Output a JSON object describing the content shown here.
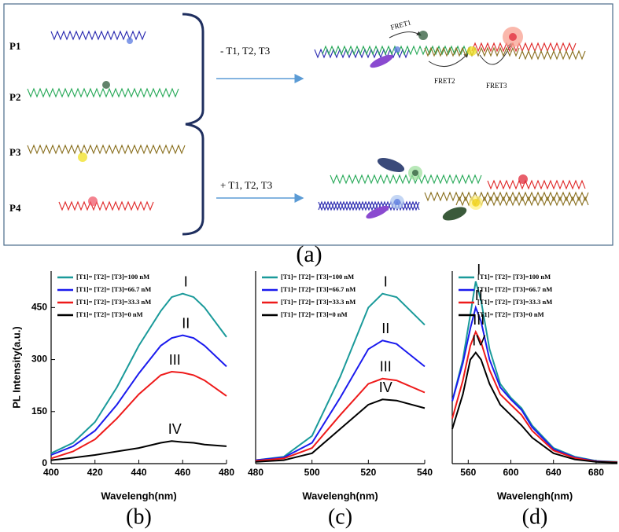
{
  "diagram": {
    "panel_label": "(a)",
    "probes": [
      "P1",
      "P2",
      "P3",
      "P4"
    ],
    "conditions": [
      "- T1, T2, T3",
      "+ T1, T2, T3"
    ],
    "fret": [
      "FRET1",
      "FRET2",
      "FRET3"
    ]
  },
  "chart_data": [
    {
      "type": "line",
      "panel_label": "(b)",
      "x_label": "Wavelengh(nm)",
      "y_label": "PL Intensity(a.u.)",
      "xlim": [
        400,
        480
      ],
      "xticks": [
        400,
        420,
        440,
        460,
        480
      ],
      "ylim": [
        0,
        555
      ],
      "yticks": [
        0,
        150,
        300,
        450
      ],
      "x": [
        400,
        410,
        420,
        430,
        440,
        450,
        455,
        460,
        465,
        470,
        480
      ],
      "series": [
        {
          "name": "[T1]= [T2]= [T3]=100 nM",
          "annotation": "I",
          "color": "#1a9a9a",
          "values": [
            30,
            60,
            120,
            220,
            340,
            440,
            480,
            490,
            480,
            450,
            365
          ]
        },
        {
          "name": "[T1]= [T2]= [T3]=66.7 nM",
          "annotation": "II",
          "color": "#1a1aee",
          "values": [
            25,
            50,
            95,
            170,
            260,
            340,
            362,
            370,
            362,
            340,
            280
          ]
        },
        {
          "name": "[T1]= [T2]= [T3]=33.3 nM",
          "annotation": "III",
          "color": "#ee1a1a",
          "values": [
            15,
            35,
            70,
            130,
            200,
            255,
            265,
            262,
            255,
            240,
            195
          ]
        },
        {
          "name": "[T1]= [T2]= [T3]=0 nM",
          "annotation": "IV",
          "color": "#000000",
          "values": [
            10,
            17,
            25,
            35,
            45,
            60,
            65,
            62,
            60,
            55,
            50
          ]
        }
      ]
    },
    {
      "type": "line",
      "panel_label": "(c)",
      "x_label": "Wavelengh(nm)",
      "xlim": [
        480,
        540
      ],
      "xticks": [
        480,
        500,
        520,
        540
      ],
      "ylim": [
        0,
        555
      ],
      "x": [
        480,
        490,
        500,
        510,
        520,
        525,
        530,
        540
      ],
      "series": [
        {
          "name": "[T1]= [T2]= [T3]=100 nM",
          "annotation": "I",
          "color": "#1a9a9a",
          "values": [
            10,
            20,
            80,
            250,
            450,
            490,
            480,
            400
          ]
        },
        {
          "name": "[T1]= [T2]= [T3]=66.7 nM",
          "annotation": "II",
          "color": "#1a1aee",
          "values": [
            10,
            18,
            60,
            190,
            330,
            355,
            345,
            280
          ]
        },
        {
          "name": "[T1]= [T2]= [T3]=33.3 nM",
          "annotation": "III",
          "color": "#ee1a1a",
          "values": [
            8,
            15,
            45,
            140,
            230,
            245,
            240,
            205
          ]
        },
        {
          "name": "[T1]= [T2]= [T3]=0 nM",
          "annotation": "IV",
          "color": "#000000",
          "values": [
            5,
            10,
            30,
            100,
            170,
            185,
            182,
            160
          ]
        }
      ]
    },
    {
      "type": "line",
      "panel_label": "(d)",
      "x_label": "Wavelengh(nm)",
      "xlim": [
        545,
        700
      ],
      "xticks": [
        560,
        600,
        640,
        680
      ],
      "ylim": [
        0,
        555
      ],
      "x": [
        545,
        555,
        562,
        567,
        572,
        580,
        590,
        600,
        610,
        620,
        640,
        660,
        680,
        700
      ],
      "series": [
        {
          "name": "[T1]= [T2]= [T3]=100 nM",
          "annotation": "I",
          "color": "#1a9a9a",
          "values": [
            180,
            300,
            430,
            525,
            470,
            330,
            230,
            190,
            160,
            110,
            45,
            20,
            8,
            5
          ]
        },
        {
          "name": "[T1]= [T2]= [T3]=66.7 nM",
          "annotation": "II",
          "color": "#1a1aee",
          "values": [
            180,
            290,
            390,
            450,
            410,
            300,
            220,
            185,
            155,
            105,
            42,
            18,
            7,
            4
          ]
        },
        {
          "name": "[T1]= [T2]= [T3]=33.3 nM",
          "annotation": "III",
          "color": "#ee1a1a",
          "values": [
            130,
            240,
            340,
            380,
            350,
            270,
            200,
            170,
            140,
            95,
            38,
            16,
            6,
            4
          ]
        },
        {
          "name": "[T1]= [T2]= [T3]=0 nM",
          "annotation": "IV",
          "color": "#000000",
          "values": [
            100,
            200,
            300,
            320,
            300,
            230,
            170,
            140,
            110,
            75,
            30,
            12,
            5,
            3
          ]
        }
      ]
    }
  ]
}
